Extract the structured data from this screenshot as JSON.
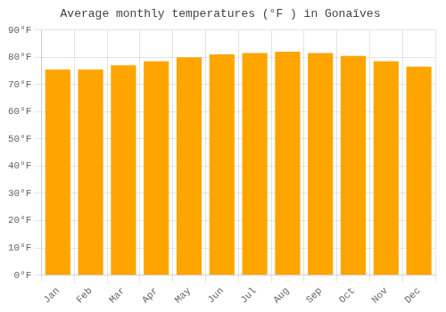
{
  "chart_data": {
    "type": "bar",
    "title": "Average monthly temperatures (°F ) in Gonaïves",
    "categories": [
      "Jan",
      "Feb",
      "Mar",
      "Apr",
      "May",
      "Jun",
      "Jul",
      "Aug",
      "Sep",
      "Oct",
      "Nov",
      "Dec"
    ],
    "values": [
      75.5,
      75.5,
      77.0,
      78.5,
      80.0,
      81.0,
      81.5,
      82.0,
      81.5,
      80.5,
      78.5,
      76.5
    ],
    "color": "#FFA500",
    "ylim": [
      0,
      90
    ],
    "yticks": [
      {
        "value": 0,
        "label": "0°F"
      },
      {
        "value": 10,
        "label": "10°F"
      },
      {
        "value": 20,
        "label": "20°F"
      },
      {
        "value": 30,
        "label": "30°F"
      },
      {
        "value": 40,
        "label": "40°F"
      },
      {
        "value": 50,
        "label": "50°F"
      },
      {
        "value": 60,
        "label": "60°F"
      },
      {
        "value": 70,
        "label": "70°F"
      },
      {
        "value": 80,
        "label": "80°F"
      },
      {
        "value": 90,
        "label": "90°F"
      }
    ],
    "grid": true
  }
}
